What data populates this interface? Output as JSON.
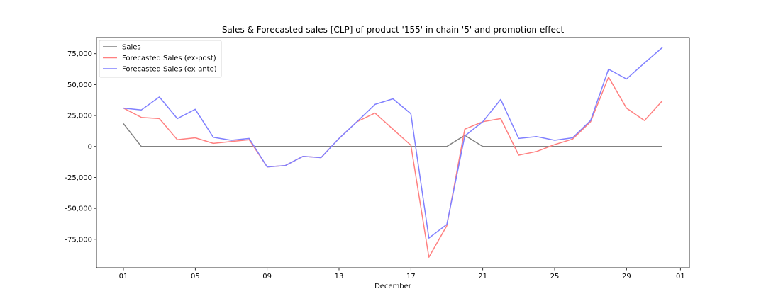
{
  "chart_data": {
    "type": "line",
    "title": "Sales & Forecasted sales [CLP] of product '155' in chain '5' and promotion effect",
    "xlabel": "December",
    "ylabel": "",
    "x_tick_labels": [
      "01",
      "05",
      "09",
      "13",
      "17",
      "21",
      "25",
      "29",
      "01"
    ],
    "x_tick_days": [
      1,
      5,
      9,
      13,
      17,
      21,
      25,
      29,
      32
    ],
    "xlim": [
      -0.5,
      32.5
    ],
    "ylim": [
      -98000,
      88000
    ],
    "y_ticks": [
      -75000,
      -50000,
      -25000,
      0,
      25000,
      50000,
      75000
    ],
    "y_tick_labels": [
      "-75,000",
      "-50,000",
      "-25,000",
      "0",
      "25,000",
      "50,000",
      "75,000"
    ],
    "x": [
      1,
      2,
      3,
      4,
      5,
      6,
      7,
      8,
      9,
      10,
      11,
      12,
      13,
      14,
      15,
      16,
      17,
      18,
      19,
      20,
      21,
      22,
      23,
      24,
      25,
      26,
      27,
      28,
      29,
      30,
      31
    ],
    "legend_position": "top-left",
    "series": [
      {
        "name": "Sales",
        "color": "#808080",
        "values": [
          18500,
          0,
          0,
          0,
          0,
          0,
          0,
          0,
          0,
          0,
          0,
          0,
          0,
          0,
          0,
          0,
          0,
          0,
          0,
          9000,
          0,
          0,
          0,
          0,
          0,
          0,
          0,
          0,
          0,
          0,
          0
        ]
      },
      {
        "name": "Forecasted Sales (ex-post)",
        "color": "#ff8080",
        "values": [
          31000,
          23500,
          22500,
          5500,
          7000,
          2500,
          4000,
          5500,
          -16500,
          -15500,
          -8000,
          -9000,
          6500,
          20000,
          27000,
          14000,
          1000,
          -89500,
          -64000,
          14000,
          20000,
          22500,
          -7000,
          -4000,
          1500,
          6000,
          20000,
          56000,
          31000,
          21000,
          37000
        ]
      },
      {
        "name": "Forecasted Sales (ex-ante)",
        "color": "#8080ff",
        "values": [
          31000,
          29500,
          40000,
          22500,
          30000,
          7500,
          5000,
          6500,
          -16500,
          -15500,
          -8000,
          -9000,
          6500,
          20000,
          34000,
          38500,
          26500,
          -74000,
          -63000,
          8500,
          20000,
          38000,
          6500,
          8000,
          5000,
          7000,
          21000,
          62500,
          54500,
          67500,
          80000
        ]
      }
    ]
  }
}
